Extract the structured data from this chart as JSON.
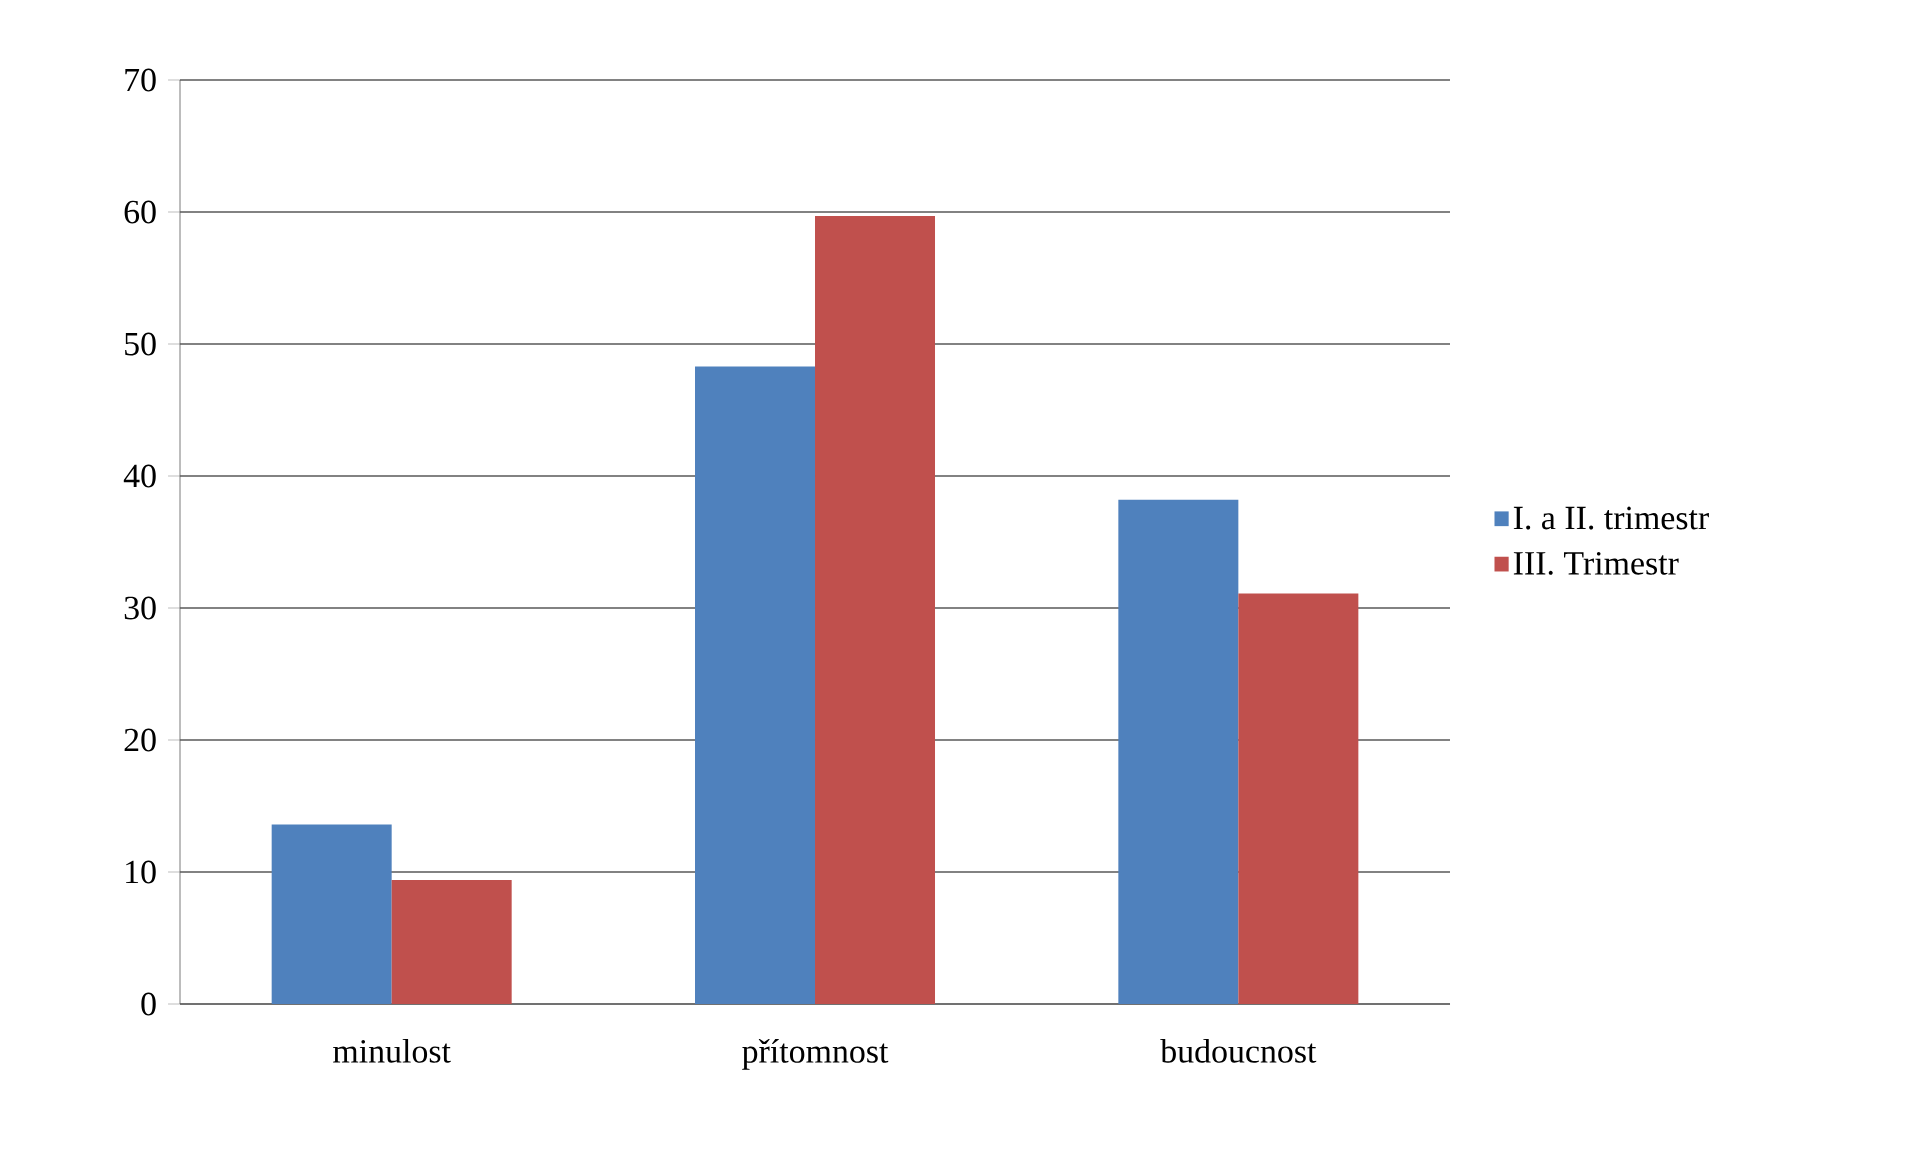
{
  "chart_data": {
    "type": "bar",
    "categories": [
      "minulost",
      "přítomnost",
      "budoucnost"
    ],
    "series": [
      {
        "name": "I. a II. trimestr",
        "color": "#4f81bd",
        "values": [
          13.6,
          48.3,
          38.2
        ]
      },
      {
        "name": "III. Trimestr",
        "color": "#c0504d",
        "values": [
          9.4,
          59.7,
          31.1
        ]
      }
    ],
    "ylim": [
      0,
      70
    ],
    "yticks": [
      0,
      10,
      20,
      30,
      40,
      50,
      60,
      70
    ],
    "grid": "y",
    "legend": "right"
  }
}
